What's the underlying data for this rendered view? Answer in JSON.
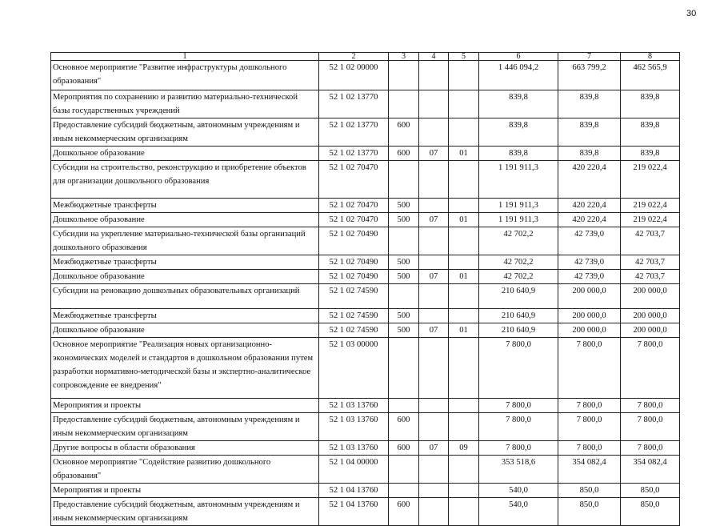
{
  "page_number": "30",
  "table": {
    "headers": [
      "1",
      "2",
      "3",
      "4",
      "5",
      "6",
      "7",
      "8"
    ],
    "rows": [
      [
        "Основное мероприятие \"Развитие инфраструктуры дошкольного образования\"",
        "52 1 02 00000",
        "",
        "",
        "",
        "1 446 094,2",
        "663 799,2",
        "462 565,9"
      ],
      [
        "Мероприятия по сохранению и развитию материально-технической базы государственных учреждений",
        "52 1 02 13770",
        "",
        "",
        "",
        "839,8",
        "839,8",
        "839,8"
      ],
      [
        "Предоставление субсидий бюджетным, автономным учреждениям и иным некоммерческим организациям",
        "52 1 02 13770",
        "600",
        "",
        "",
        "839,8",
        "839,8",
        "839,8"
      ],
      [
        "Дошкольное образование",
        "52 1 02 13770",
        "600",
        "07",
        "01",
        "839,8",
        "839,8",
        "839,8"
      ],
      [
        "Субсидии на строительство, реконструкцию и приобретение объектов для организации дошкольного образования",
        "52 1 02 70470",
        "",
        "",
        "",
        "1 191 911,3",
        "420 220,4",
        "219 022,4"
      ],
      [
        "Межбюджетные трансферты",
        "52 1 02 70470",
        "500",
        "",
        "",
        "1 191 911,3",
        "420 220,4",
        "219 022,4"
      ],
      [
        "Дошкольное образование",
        "52 1 02 70470",
        "500",
        "07",
        "01",
        "1 191 911,3",
        "420 220,4",
        "219 022,4"
      ],
      [
        "Субсидии на укрепление материально-технической базы организаций дошкольного образования",
        "52 1 02 70490",
        "",
        "",
        "",
        "42 702,2",
        "42 739,0",
        "42 703,7"
      ],
      [
        "Межбюджетные трансферты",
        "52 1 02 70490",
        "500",
        "",
        "",
        "42 702,2",
        "42 739,0",
        "42 703,7"
      ],
      [
        "Дошкольное образование",
        "52 1 02 70490",
        "500",
        "07",
        "01",
        "42 702,2",
        "42 739,0",
        "42 703,7"
      ],
      [
        "Субсидии на реновацию дошкольных образовательных организаций",
        "52 1 02 74590",
        "",
        "",
        "",
        "210 640,9",
        "200 000,0",
        "200 000,0"
      ],
      [
        "Межбюджетные трансферты",
        "52 1 02 74590",
        "500",
        "",
        "",
        "210 640,9",
        "200 000,0",
        "200 000,0"
      ],
      [
        "Дошкольное образование",
        "52 1 02 74590",
        "500",
        "07",
        "01",
        "210 640,9",
        "200 000,0",
        "200 000,0"
      ],
      [
        "Основное мероприятие \"Реализация новых организационно-экономических моделей и стандартов в дошкольном образовании путем разработки нормативно-методической базы и экспертно-аналитическое сопровождение ее внедрения\"",
        "52 1 03 00000",
        "",
        "",
        "",
        "7 800,0",
        "7 800,0",
        "7 800,0"
      ],
      [
        "Мероприятия и проекты",
        "52 1 03 13760",
        "",
        "",
        "",
        "7 800,0",
        "7 800,0",
        "7 800,0"
      ],
      [
        "Предоставление субсидий бюджетным, автономным учреждениям и иным некоммерческим организациям",
        "52 1 03 13760",
        "600",
        "",
        "",
        "7 800,0",
        "7 800,0",
        "7 800,0"
      ],
      [
        "Другие вопросы в области образования",
        "52 1 03 13760",
        "600",
        "07",
        "09",
        "7 800,0",
        "7 800,0",
        "7 800,0"
      ],
      [
        "Основное мероприятие \"Содействие развитию дошкольного образования\"",
        "52 1 04 00000",
        "",
        "",
        "",
        "353 518,6",
        "354 082,4",
        "354 082,4"
      ],
      [
        "Мероприятия и проекты",
        "52 1 04 13760",
        "",
        "",
        "",
        "540,0",
        "850,0",
        "850,0"
      ],
      [
        "Предоставление субсидий бюджетным, автономным учреждениям и иным некоммерческим организациям",
        "52 1 04 13760",
        "600",
        "",
        "",
        "540,0",
        "850,0",
        "850,0"
      ]
    ]
  }
}
